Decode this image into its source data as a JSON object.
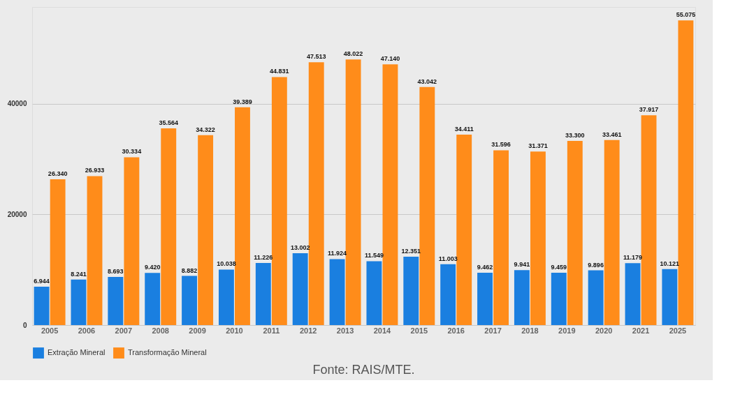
{
  "chart_data": {
    "type": "bar",
    "categories": [
      "2005",
      "2006",
      "2007",
      "2008",
      "2009",
      "2010",
      "2011",
      "2012",
      "2013",
      "2014",
      "2015",
      "2016",
      "2017",
      "2018",
      "2019",
      "2020",
      "2021",
      "2025"
    ],
    "series": [
      {
        "name": "Extração Mineral",
        "color": "#1a7fe0",
        "values": [
          6944,
          8241,
          8693,
          9420,
          8882,
          10038,
          11226,
          13002,
          11924,
          11549,
          12351,
          11003,
          9462,
          9941,
          9459,
          9896,
          11179,
          10121
        ],
        "value_labels": [
          "6.944",
          "8.241",
          "8.693",
          "9.420",
          "8.882",
          "10.038",
          "11.226",
          "13.002",
          "11.924",
          "11.549",
          "12.351",
          "11.003",
          "9.462",
          "9.941",
          "9.459",
          "9.896",
          "11.179",
          "10.121"
        ]
      },
      {
        "name": "Transformação Mineral",
        "color": "#ff8c1a",
        "values": [
          26340,
          26933,
          30334,
          35564,
          34322,
          39389,
          44831,
          47513,
          48022,
          47140,
          43042,
          34411,
          31596,
          31371,
          33300,
          33461,
          37917,
          55075
        ],
        "value_labels": [
          "26.340",
          "26.933",
          "30.334",
          "35.564",
          "34.322",
          "39.389",
          "44.831",
          "47.513",
          "48.022",
          "47.140",
          "43.042",
          "34.411",
          "31.596",
          "31.371",
          "33.300",
          "33.461",
          "37.917",
          "55.075"
        ]
      }
    ],
    "ylim": [
      0,
      57500
    ],
    "yticks": [
      0,
      20000,
      40000
    ],
    "grid": "y",
    "legend": "bottom",
    "annotations": [
      "Fonte: RAIS/MTE."
    ]
  }
}
